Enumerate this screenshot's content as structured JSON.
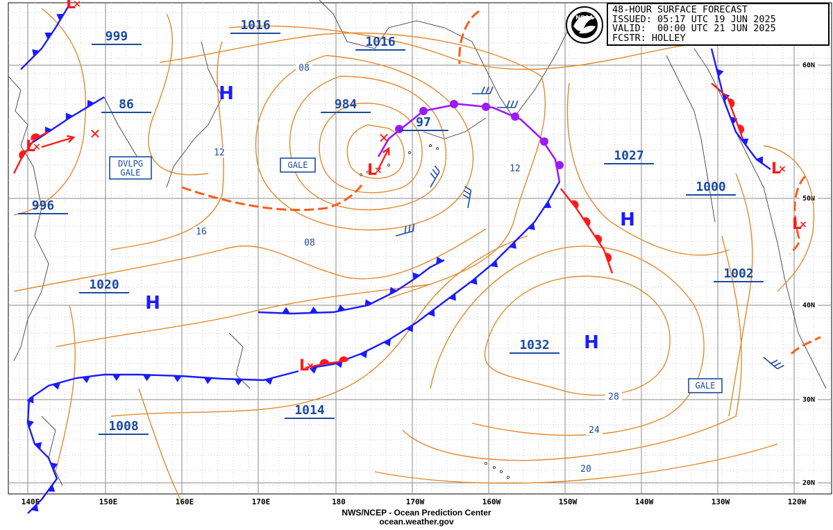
{
  "header": {
    "title": "48-HOUR SURFACE FORECAST",
    "issued": "ISSUED: 05:17 UTC 19 JUN 2025",
    "valid": "VALID:  00:00 UTC 21 JUN 2025",
    "forecaster": "FCSTR: HOLLEY",
    "logo_text": "NOAA"
  },
  "footer": {
    "line1": "NWS/NCEP - Ocean Prediction Center",
    "line2": "ocean.weather.gov"
  },
  "axes": {
    "longitudes": [
      "140E",
      "150E",
      "160E",
      "170E",
      "180",
      "170W",
      "160W",
      "150W",
      "140W",
      "130W",
      "120W"
    ],
    "latitudes": [
      "60N",
      "50N",
      "40N",
      "30N",
      "20N"
    ]
  },
  "pressure_labels": [
    "999",
    "1016",
    "1016",
    "86",
    "984",
    "97",
    "1027",
    "1000",
    "996",
    "1020",
    "1002",
    "1032",
    "1008",
    "1014"
  ],
  "isobar_labels": [
    "08",
    "12",
    "12",
    "16",
    "08",
    "28",
    "24",
    "20"
  ],
  "highs": [
    "H",
    "H",
    "H",
    "H"
  ],
  "lows": [
    "L",
    "L",
    "L",
    "L",
    "L",
    "L"
  ],
  "warnings": [
    "DVLPG\nGALE",
    "GALE",
    "GALE"
  ],
  "colors": {
    "isobar": "#e08a2c",
    "cold_front": "#1a1aff",
    "warm_front": "#ff1a1a",
    "occluded_front": "#9b1aff",
    "trough": "#ff5a1a",
    "label": "#1a4aa0",
    "high": "#1a1aff",
    "low": "#ff1a1a",
    "grid": "#888888",
    "coast": "#404040"
  }
}
